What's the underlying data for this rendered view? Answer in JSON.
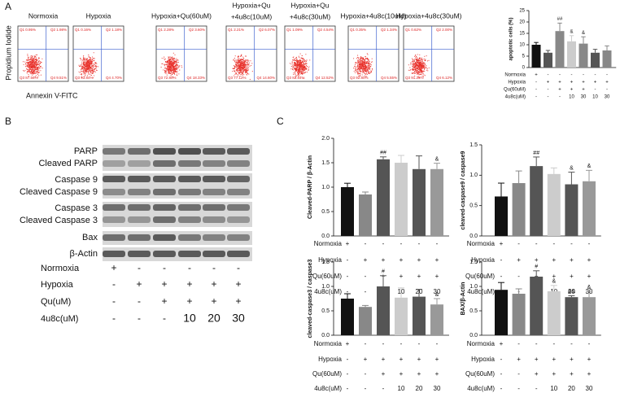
{
  "panel_a": {
    "label": "A",
    "flow": {
      "ylabel": "Propidium Iodide",
      "xlabel": "Annexin V-FITC",
      "panels": [
        {
          "title": [
            "Normoxia"
          ],
          "quadrants": [
            "Q1 0.95%",
            "Q2 1.98%",
            "Q3 87.56%",
            "Q4 9.51%"
          ]
        },
        {
          "title": [
            "Hypoxia"
          ],
          "quadrants": [
            "Q1 0.16%",
            "Q2 1.18%",
            "Q3 93.84%",
            "Q4 4.70%"
          ]
        },
        {
          "title": [
            "Hypoxia+Qu(60uM)"
          ],
          "quadrants": [
            "Q1 2.28%",
            "Q2 3.60%",
            "Q3 72.80%",
            "Q4 18.33%"
          ]
        },
        {
          "title": [
            "Hypoxia+Qu",
            "+4u8c(10uM)"
          ],
          "quadrants": [
            "Q1 2.21%",
            "Q2 6.07%",
            "Q3 77.12%",
            "Q4 14.60%"
          ]
        },
        {
          "title": [
            "Hypoxia+Qu",
            "+4u8c(30uM)"
          ],
          "quadrants": [
            "Q1 1.09%",
            "Q2 4.54%",
            "Q3 82.84%",
            "Q4 12.52%"
          ]
        },
        {
          "title": [
            "Hypoxia+4u8c(10uM)"
          ],
          "quadrants": [
            "Q1 0.35%",
            "Q2 1.34%",
            "Q3 92.80%",
            "Q4 5.55%"
          ]
        },
        {
          "title": [
            "Hypoxia+4u8c(30uM)"
          ],
          "quadrants": [
            "Q1 0.62%",
            "Q2 2.00%",
            "Q3 91.25%",
            "Q4 6.12%"
          ]
        }
      ]
    }
  },
  "panel_b": {
    "label": "B",
    "blot_labels": [
      "PARP",
      "Cleaved PARP",
      "Caspase 9",
      "Cleaved Caspase 9",
      "Caspase 3",
      "Cleaved Caspase 3",
      "Bax",
      "β-Actin"
    ],
    "conditions": [
      {
        "label": "Normoxia",
        "cells": [
          "+",
          "-",
          "-",
          "-",
          "-",
          "-"
        ]
      },
      {
        "label": "Hypoxia",
        "cells": [
          "-",
          "+",
          "+",
          "+",
          "+",
          "+"
        ]
      },
      {
        "label": "Qu(uM)",
        "cells": [
          "-",
          "-",
          "+",
          "+",
          "+",
          "+"
        ]
      },
      {
        "label": "4u8c(uM)",
        "cells": [
          "-",
          "-",
          "-",
          "10",
          "20",
          "30"
        ]
      }
    ]
  },
  "panel_c": {
    "label": "C"
  },
  "chart_data": [
    {
      "type": "bar",
      "ylabel": "apoptotic cells (%)",
      "values": [
        10,
        6.5,
        16,
        11.5,
        10.5,
        6.5,
        7.5
      ],
      "errors": [
        1,
        1,
        3.5,
        2.5,
        3,
        1.5,
        2
      ],
      "annotations": [
        null,
        null,
        "##",
        "&",
        "&",
        null,
        null
      ],
      "colors": [
        "#111111",
        "#555555",
        "#888888",
        "#cccccc",
        "#888888",
        "#555555",
        "#888888"
      ],
      "ylim": [
        0,
        25
      ],
      "yticks": [
        0,
        5,
        10,
        15,
        20,
        25
      ],
      "conditions": [
        {
          "label": "Normoxia",
          "cells": [
            "+",
            "-",
            "-",
            "-",
            "-",
            "-",
            "-"
          ]
        },
        {
          "label": "Hypoxia",
          "cells": [
            "-",
            "+",
            "+",
            "+",
            "+",
            "+",
            "+"
          ]
        },
        {
          "label": "Qu(60uM)",
          "cells": [
            "-",
            "-",
            "+",
            "+",
            "+",
            "-",
            "-"
          ]
        },
        {
          "label": "4u8c(uM)",
          "cells": [
            "-",
            "-",
            "-",
            "10",
            "30",
            "10",
            "30"
          ]
        }
      ]
    },
    {
      "type": "bar",
      "ylabel": "Cleaved-PARP / β-Actin",
      "values": [
        1.0,
        0.85,
        1.57,
        1.5,
        1.37,
        1.37
      ],
      "errors": [
        0.08,
        0.05,
        0.05,
        0.15,
        0.27,
        0.12
      ],
      "annotations": [
        null,
        null,
        "##",
        null,
        null,
        "&"
      ],
      "colors": [
        "#111111",
        "#888888",
        "#555555",
        "#cccccc",
        "#555555",
        "#999999"
      ],
      "ylim": [
        0,
        2
      ],
      "yticks": [
        {
          "value": 0,
          "label": "0.0"
        },
        0.5,
        {
          "value": 1,
          "label": "1.0"
        },
        1.5,
        {
          "value": 2,
          "label": "2.0"
        }
      ],
      "conditions": [
        {
          "label": "Normoxia",
          "cells": [
            "+",
            "-",
            "-",
            "-",
            "-",
            "-"
          ]
        },
        {
          "label": "Hypoxia",
          "cells": [
            "-",
            "+",
            "+",
            "+",
            "+",
            "+"
          ]
        },
        {
          "label": "Qu(60uM)",
          "cells": [
            "-",
            "-",
            "+",
            "+",
            "+",
            "+"
          ]
        },
        {
          "label": "4u8c(uM)",
          "cells": [
            "-",
            "-",
            "-",
            "10",
            "20",
            "30"
          ]
        }
      ]
    },
    {
      "type": "bar",
      "ylabel": "cleaved-caspase9 / caspase9",
      "values": [
        0.65,
        0.87,
        1.15,
        1.02,
        0.85,
        0.9
      ],
      "errors": [
        0.22,
        0.2,
        0.15,
        0.1,
        0.2,
        0.18
      ],
      "annotations": [
        null,
        null,
        "##",
        null,
        "&",
        "&"
      ],
      "colors": [
        "#111111",
        "#888888",
        "#555555",
        "#cccccc",
        "#555555",
        "#999999"
      ],
      "ylim": [
        0,
        1.5
      ],
      "yticks": [
        {
          "value": 0,
          "label": "0.0"
        },
        0.5,
        {
          "value": 1,
          "label": "1.0"
        },
        1.5
      ],
      "conditions": [
        {
          "label": "Normoxia",
          "cells": [
            "+",
            "-",
            "-",
            "-",
            "-",
            "-"
          ]
        },
        {
          "label": "Hypoxia",
          "cells": [
            "-",
            "+",
            "+",
            "+",
            "+",
            "+"
          ]
        },
        {
          "label": "Qu(60uM)",
          "cells": [
            "-",
            "-",
            "+",
            "+",
            "+",
            "+"
          ]
        },
        {
          "label": "4u8c(uM)",
          "cells": [
            "-",
            "-",
            "-",
            "10",
            "20",
            "30"
          ]
        }
      ]
    },
    {
      "type": "bar",
      "ylabel": "cleaved-caspase3 / caspase3",
      "values": [
        0.75,
        0.58,
        1.0,
        0.77,
        0.79,
        0.63
      ],
      "errors": [
        0.1,
        0.03,
        0.22,
        0.2,
        0.15,
        0.12
      ],
      "annotations": [
        null,
        null,
        "#",
        null,
        null,
        "&"
      ],
      "colors": [
        "#111111",
        "#888888",
        "#555555",
        "#cccccc",
        "#555555",
        "#999999"
      ],
      "ylim": [
        0,
        1.5
      ],
      "yticks": [
        {
          "value": 0,
          "label": "0.0"
        },
        0.5,
        {
          "value": 1,
          "label": "1.0"
        },
        1.5
      ],
      "conditions": [
        {
          "label": "Normoxia",
          "cells": [
            "+",
            "-",
            "-",
            "-",
            "-",
            "-"
          ]
        },
        {
          "label": "Hypoxia",
          "cells": [
            "-",
            "+",
            "+",
            "+",
            "+",
            "+"
          ]
        },
        {
          "label": "Qu(60uM)",
          "cells": [
            "-",
            "-",
            "+",
            "+",
            "+",
            "+"
          ]
        },
        {
          "label": "4u8c(uM)",
          "cells": [
            "-",
            "-",
            "-",
            "10",
            "20",
            "30"
          ]
        }
      ]
    },
    {
      "type": "bar",
      "ylabel": "BAX/β-Actin",
      "values": [
        0.93,
        0.85,
        1.2,
        0.9,
        0.78,
        0.78
      ],
      "errors": [
        0.15,
        0.1,
        0.12,
        0.12,
        0.03,
        0.12
      ],
      "annotations": [
        null,
        null,
        "#",
        "&",
        "&&",
        "&"
      ],
      "colors": [
        "#111111",
        "#888888",
        "#555555",
        "#cccccc",
        "#555555",
        "#999999"
      ],
      "ylim": [
        0,
        1.5
      ],
      "yticks": [
        {
          "value": 0,
          "label": "0.0"
        },
        0.5,
        {
          "value": 1,
          "label": "1.0"
        },
        1.5
      ],
      "conditions": [
        {
          "label": "Normoxia",
          "cells": [
            "+",
            "-",
            "-",
            "-",
            "-",
            "-"
          ]
        },
        {
          "label": "Hypoxia",
          "cells": [
            "-",
            "+",
            "+",
            "+",
            "+",
            "+"
          ]
        },
        {
          "label": "Qu(60uM)",
          "cells": [
            "-",
            "-",
            "+",
            "+",
            "+",
            "+"
          ]
        },
        {
          "label": "4u8c(uM)",
          "cells": [
            "-",
            "-",
            "-",
            "10",
            "20",
            "30"
          ]
        }
      ]
    }
  ]
}
